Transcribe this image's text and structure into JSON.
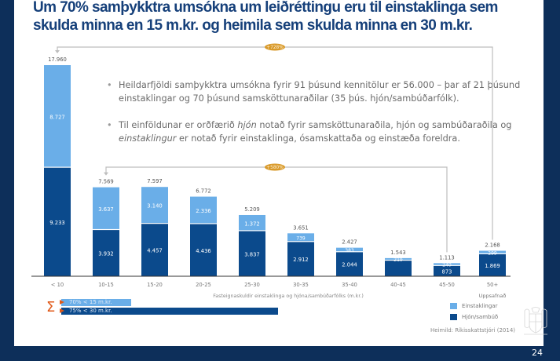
{
  "slide": {
    "title": "Um 70% samþykktra umsókna  um leiðréttingu eru til einstaklinga sem skulda minna en 15 m.kr. og heimila sem skulda minna en 30 m.kr.",
    "page_number": "24",
    "bullets": [
      {
        "text_parts": [
          {
            "t": "Heildarfjöldi samþykktra umsókna fyrir 91 þúsund kennitölur er 56.000  – þar af 21 þúsund einstaklingar og 70 þúsund samsköttunaraðilar (35 þús. hjón/sambúðarfólk).",
            "italic": false
          }
        ]
      },
      {
        "text_parts": [
          {
            "t": "Til einföldunar er orðfærið ",
            "italic": false
          },
          {
            "t": "hjón",
            "italic": true
          },
          {
            "t": " notað fyrir samsköttunaraðila, hjón og sambúðaraðila og ",
            "italic": false
          },
          {
            "t": "einstaklingur",
            "italic": true
          },
          {
            "t": " er notað fyrir einstaklinga, ósamskattaða og einstæða foreldra.",
            "italic": false
          }
        ]
      }
    ],
    "bullet_symbol": "•",
    "summary": {
      "symbol": "Σ",
      "bars": [
        {
          "label": "70% < 15 m.kr.",
          "share": 0.7,
          "color": "#6aaee8"
        },
        {
          "label": "75% < 30 m.kr.",
          "share": 0.75,
          "color": "#0b4a8c"
        }
      ]
    },
    "source": "Heimild: Ríkisskattstjóri (2014)",
    "crest_icon": "coat-of-arms-icon",
    "colors": {
      "frame": "#0d2f5a",
      "title": "#16407a",
      "single": "#6aaee8",
      "couple": "#0b4a8c",
      "badge": "#d99a2b",
      "connector": "#bdbdbd"
    }
  },
  "chart_data": {
    "type": "bar",
    "stacked": true,
    "title": "",
    "xlabel": "Fasteignaskuldir einstaklinga og hjóna/sambúðarfólks (m.kr.)",
    "ylabel": "",
    "ylim": [
      0,
      17960
    ],
    "grid": false,
    "categories": [
      "< 10",
      "10-15",
      "15-20",
      "20-25",
      "25-30",
      "30-35",
      "35-40",
      "40-45",
      "45-50",
      "50+"
    ],
    "category_sublabels": {
      "50+": "Uppsafnað"
    },
    "series": [
      {
        "name": "Hjón/sambúð",
        "color": "#0b4a8c",
        "values": [
          9233,
          3932,
          4457,
          4436,
          3837,
          2912,
          2044,
          1324,
          873,
          1869
        ],
        "labels": [
          "9.233",
          "3.932",
          "4.457",
          "4.436",
          "3.837",
          "2.912",
          "2.044",
          "",
          "873",
          "1.869"
        ]
      },
      {
        "name": "Einstaklingar",
        "color": "#6aaee8",
        "values": [
          8727,
          3637,
          3140,
          2336,
          1372,
          739,
          383,
          219,
          240,
          299
        ],
        "labels": [
          "8.727",
          "3.637",
          "3.140",
          "2.336",
          "1.372",
          "739",
          "383",
          "219",
          "240",
          "299"
        ]
      }
    ],
    "totals": [
      17960,
      7569,
      7597,
      6772,
      5209,
      3651,
      2427,
      1543,
      1113,
      2168
    ],
    "total_labels": [
      "17.960",
      "7.569",
      "7.597",
      "6.772",
      "5.209",
      "3.651",
      "2.427",
      "1.543",
      "1.113",
      "2.168"
    ],
    "legend": {
      "position": "bottom-right",
      "entries": [
        "Einstaklingar",
        "Hjón/sambúð"
      ]
    },
    "annotations": [
      {
        "label": "+728%",
        "from_category": "< 10",
        "to_category": "50+"
      },
      {
        "label": "+580%",
        "from_category": "10-15",
        "to_category": "45-50"
      }
    ]
  }
}
